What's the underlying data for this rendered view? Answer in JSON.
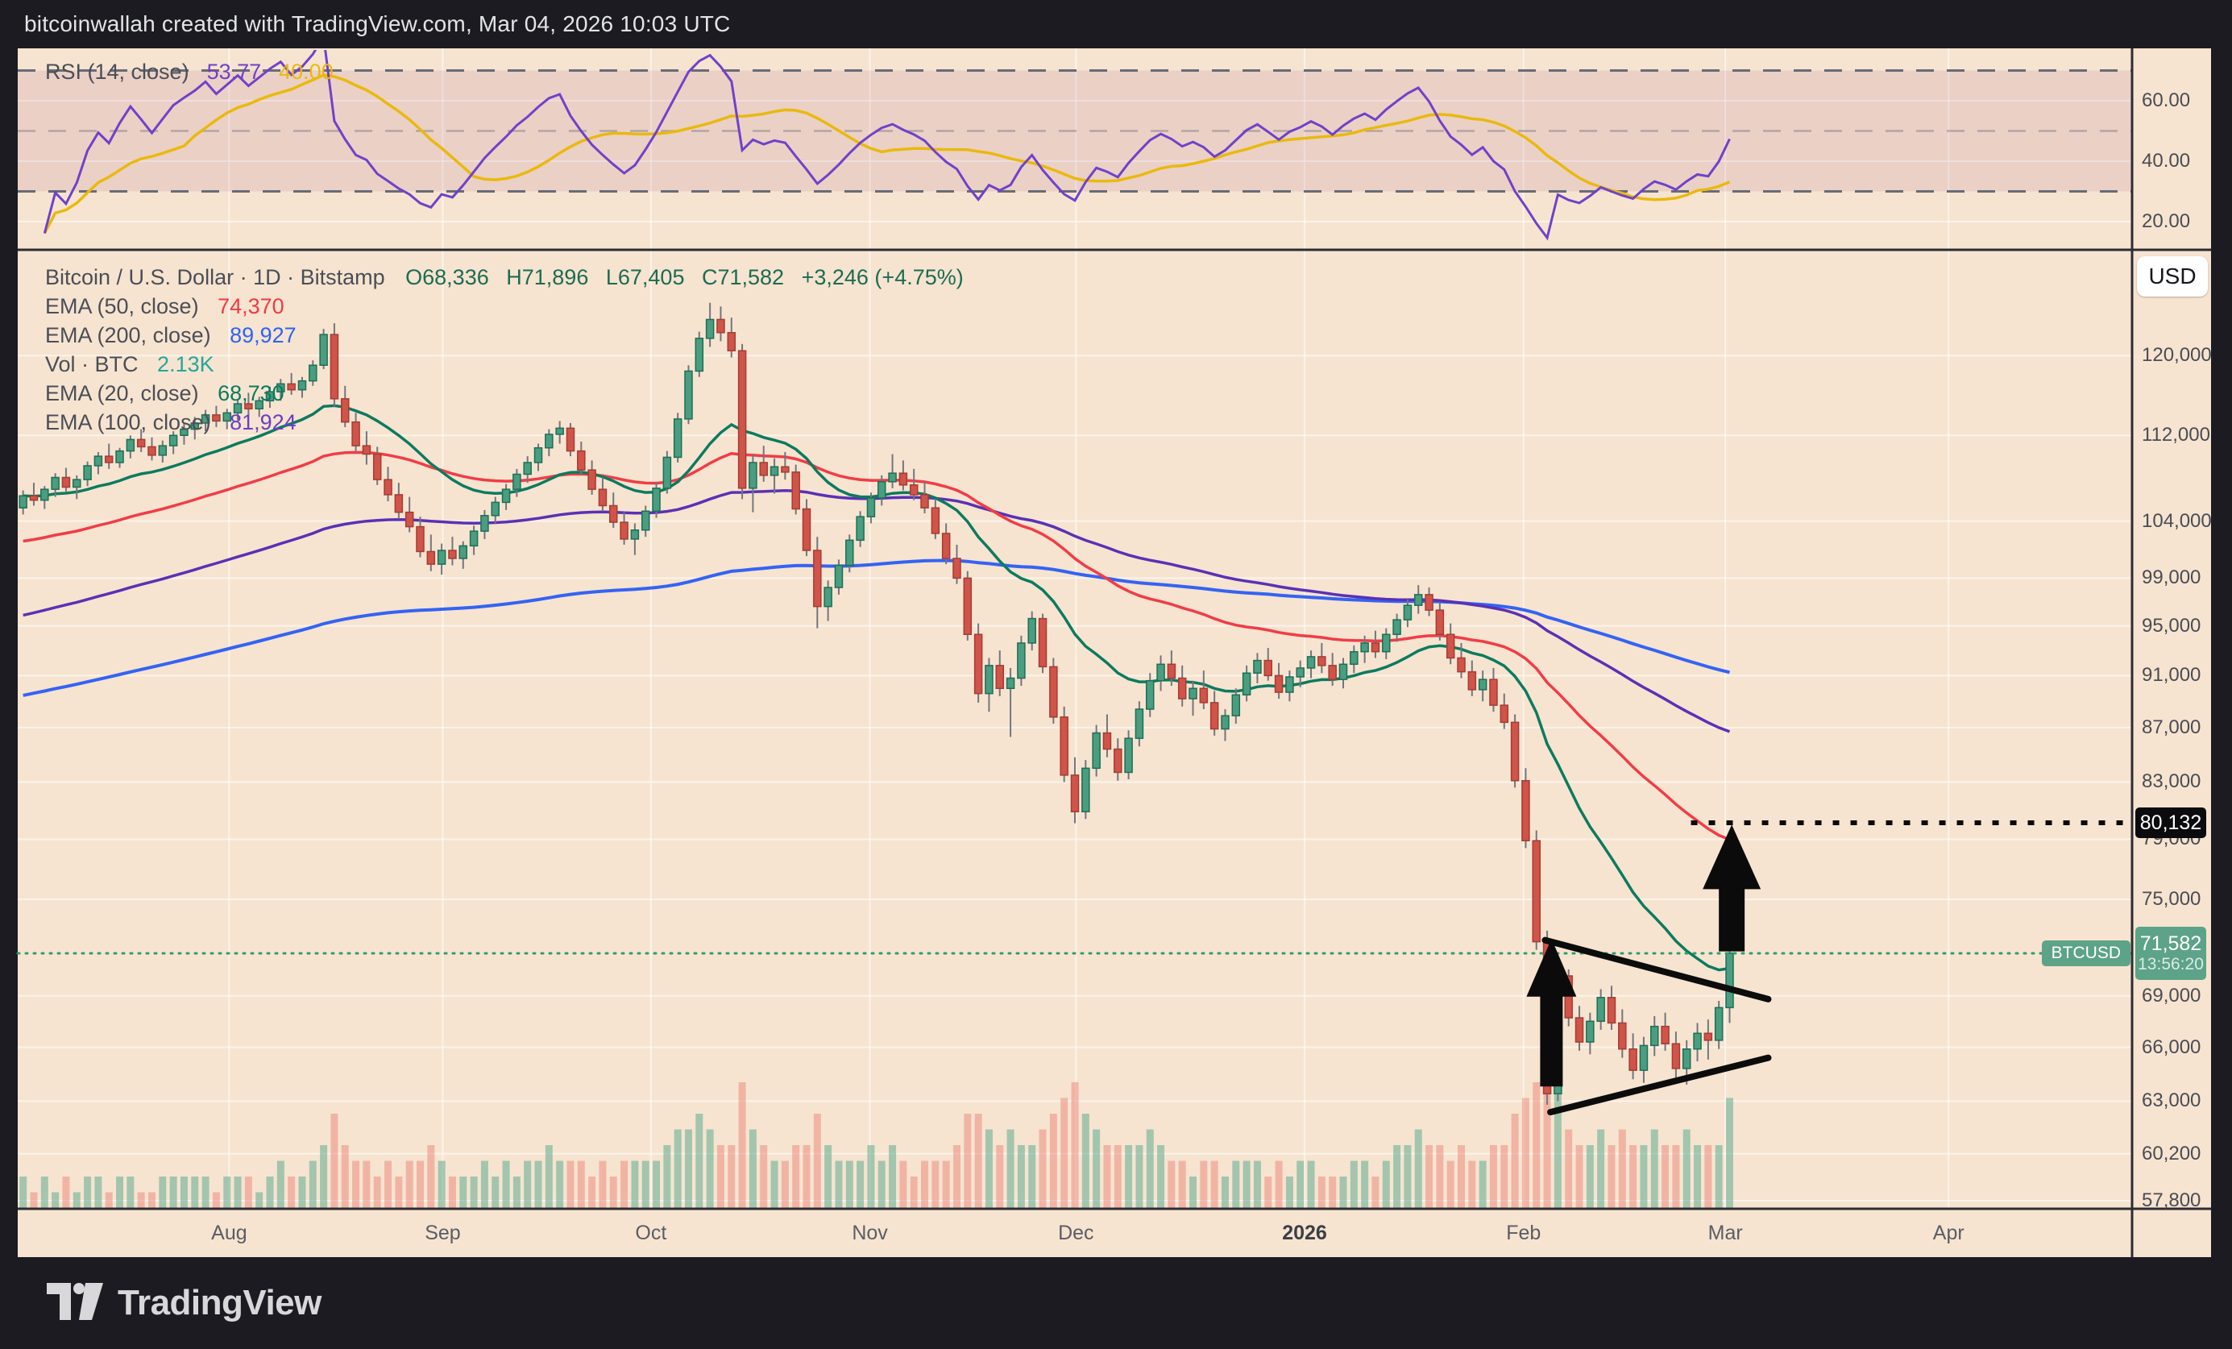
{
  "header": {
    "title": "bitcoinwallah created with TradingView.com, Mar 04, 2026 10:03 UTC"
  },
  "rsi_panel": {
    "legend_label": "RSI (14, close)",
    "rsi_value": "53.77",
    "ma_value": "40.00",
    "colors": {
      "rsi": "#6f42c8",
      "ma": "#e9b90e"
    },
    "ticks": [
      {
        "label": "60.00",
        "value": 60
      },
      {
        "label": "40.00",
        "value": 40
      },
      {
        "label": "20.00",
        "value": 20
      }
    ],
    "bands": {
      "upper": 70,
      "middle": 50,
      "lower": 30
    }
  },
  "main_panel": {
    "legend_title": "Bitcoin / U.S. Dollar · 1D · Bitstamp",
    "ohlc": {
      "open": "O68,336",
      "high": "H71,896",
      "low": "L67,405",
      "close": "C71,582",
      "change": "+3,246 (+4.75%)",
      "color": "#1c6b52"
    },
    "indicators": [
      {
        "label": "EMA (50, close)",
        "value": "74,370",
        "color": "#ef3a45"
      },
      {
        "label": "EMA (200, close)",
        "value": "89,927",
        "color": "#2d63f2"
      },
      {
        "label": "Vol · BTC",
        "value": "2.13K",
        "color": "#26a69a"
      },
      {
        "label": "EMA (20, close)",
        "value": "68,730",
        "color": "#0d7a5f"
      },
      {
        "label": "EMA (100, close)",
        "value": "81,924",
        "color": "#6b3fc4"
      }
    ]
  },
  "price_scale": {
    "currency_button": "USD",
    "ticks": [
      {
        "label": "120,000",
        "value": 120000
      },
      {
        "label": "112,000",
        "value": 112000
      },
      {
        "label": "104,000",
        "value": 104000
      },
      {
        "label": "99,000",
        "value": 99000
      },
      {
        "label": "95,000",
        "value": 95000
      },
      {
        "label": "91,000",
        "value": 91000
      },
      {
        "label": "87,000",
        "value": 87000
      },
      {
        "label": "83,000",
        "value": 83000
      },
      {
        "label": "79,000",
        "value": 79000
      },
      {
        "label": "75,000",
        "value": 75000
      },
      {
        "label": "69,000",
        "value": 69000
      },
      {
        "label": "66,000",
        "value": 66000
      },
      {
        "label": "63,000",
        "value": 63000
      },
      {
        "label": "60,200",
        "value": 60200
      },
      {
        "label": "57,800",
        "value": 57800
      }
    ],
    "target_label": "80,132",
    "symbol_label": "BTCUSD",
    "last_price": "71,582",
    "countdown": "13:56:20"
  },
  "time_axis": {
    "months": [
      {
        "label": "Aug",
        "slot": 19.2
      },
      {
        "label": "Sep",
        "slot": 39.1
      },
      {
        "label": "Oct",
        "slot": 58.5
      },
      {
        "label": "Nov",
        "slot": 78.9
      },
      {
        "label": "Dec",
        "slot": 98.1
      },
      {
        "label": "2026",
        "slot": 119.4,
        "bold": true
      },
      {
        "label": "Feb",
        "slot": 139.8
      },
      {
        "label": "Mar",
        "slot": 158.6
      },
      {
        "label": "Apr",
        "slot": 179.4
      }
    ]
  },
  "footer": {
    "brand": "TradingView"
  },
  "chart_data": {
    "type": "candlestick",
    "title": "Bitcoin / U.S. Dollar",
    "symbol": "BTCUSD",
    "interval": "1D",
    "exchange": "Bitstamp",
    "scale": "log",
    "ylim": [
      57400,
      131300
    ],
    "rsi": {
      "period": 14,
      "ma_period": 14,
      "last": 53.77,
      "ma_last": 40.0
    },
    "ema_overlays": [
      {
        "period": 20,
        "color": "#0d7a5f",
        "width": 3.5,
        "seed_mult": 1.0,
        "last": 68730
      },
      {
        "period": 50,
        "color": "#f13c47",
        "width": 3.5,
        "seed_mult": 0.96,
        "last": 74370
      },
      {
        "period": 100,
        "color": "#5a31b5",
        "width": 3.5,
        "seed_mult": 0.9,
        "last": 81924
      },
      {
        "period": 200,
        "color": "#3563f2",
        "width": 4,
        "seed_mult": 0.84,
        "last": 89927
      }
    ],
    "units": "thousands_usd",
    "candles": [
      [
        105.2,
        106.8,
        104.6,
        106.3,
        2
      ],
      [
        106.3,
        107.5,
        105.4,
        105.9,
        1
      ],
      [
        105.9,
        107.2,
        105.1,
        106.9,
        2
      ],
      [
        106.9,
        108.4,
        106.2,
        108.0,
        1
      ],
      [
        108.0,
        108.9,
        106.6,
        107.1,
        2
      ],
      [
        107.1,
        108.2,
        106.0,
        107.8,
        1
      ],
      [
        107.8,
        109.5,
        107.2,
        109.1,
        2
      ],
      [
        109.1,
        110.4,
        108.3,
        110.0,
        2
      ],
      [
        110.0,
        111.2,
        108.8,
        109.4,
        1
      ],
      [
        109.4,
        110.8,
        108.9,
        110.5,
        2
      ],
      [
        110.5,
        112.0,
        109.8,
        111.6,
        2
      ],
      [
        111.6,
        112.6,
        110.4,
        110.9,
        1
      ],
      [
        110.9,
        111.8,
        109.6,
        110.1,
        1
      ],
      [
        110.1,
        111.5,
        109.4,
        111.0,
        2
      ],
      [
        111.0,
        112.4,
        110.2,
        112.0,
        2
      ],
      [
        112.0,
        113.2,
        111.1,
        112.6,
        2
      ],
      [
        112.6,
        113.8,
        111.6,
        113.2,
        2
      ],
      [
        113.2,
        114.5,
        112.4,
        114.0,
        2
      ],
      [
        114.0,
        114.9,
        112.8,
        113.4,
        1
      ],
      [
        113.4,
        114.6,
        112.6,
        114.2,
        2
      ],
      [
        114.2,
        115.6,
        113.5,
        115.1,
        2
      ],
      [
        115.1,
        116.2,
        114.0,
        114.6,
        2
      ],
      [
        114.6,
        115.8,
        113.8,
        115.4,
        1
      ],
      [
        115.4,
        116.8,
        114.7,
        116.3,
        2
      ],
      [
        116.3,
        117.6,
        115.4,
        117.1,
        3
      ],
      [
        117.1,
        118.2,
        116.0,
        116.5,
        2
      ],
      [
        116.5,
        117.8,
        115.7,
        117.4,
        2
      ],
      [
        117.4,
        119.5,
        116.9,
        119.0,
        3
      ],
      [
        119.0,
        122.8,
        118.6,
        122.2,
        4
      ],
      [
        122.2,
        123.4,
        114.8,
        115.6,
        6
      ],
      [
        115.6,
        116.9,
        112.8,
        113.3,
        4
      ],
      [
        113.3,
        114.2,
        110.5,
        111.0,
        3
      ],
      [
        111.0,
        112.4,
        109.2,
        110.2,
        3
      ],
      [
        110.2,
        110.9,
        107.3,
        107.8,
        2
      ],
      [
        107.8,
        109.0,
        105.8,
        106.4,
        3
      ],
      [
        106.4,
        107.5,
        104.2,
        104.8,
        2
      ],
      [
        104.8,
        106.2,
        103.0,
        103.5,
        3
      ],
      [
        103.5,
        104.4,
        100.8,
        101.3,
        3
      ],
      [
        101.3,
        102.8,
        99.6,
        100.2,
        4
      ],
      [
        100.2,
        102.0,
        99.3,
        101.4,
        3
      ],
      [
        101.4,
        102.6,
        100.1,
        100.7,
        2
      ],
      [
        100.7,
        102.2,
        99.8,
        101.8,
        2
      ],
      [
        101.8,
        103.6,
        101.0,
        103.1,
        2
      ],
      [
        103.1,
        105.0,
        102.4,
        104.5,
        3
      ],
      [
        104.5,
        106.2,
        103.8,
        105.7,
        2
      ],
      [
        105.7,
        107.4,
        105.0,
        106.9,
        3
      ],
      [
        106.9,
        108.8,
        106.2,
        108.3,
        2
      ],
      [
        108.3,
        110.0,
        107.5,
        109.4,
        3
      ],
      [
        109.4,
        111.2,
        108.6,
        110.8,
        3
      ],
      [
        110.8,
        112.6,
        110.0,
        112.1,
        4
      ],
      [
        112.1,
        113.4,
        111.2,
        112.7,
        3
      ],
      [
        112.7,
        113.2,
        110.0,
        110.5,
        3
      ],
      [
        110.5,
        111.4,
        108.2,
        108.7,
        3
      ],
      [
        108.7,
        109.6,
        106.4,
        106.9,
        2
      ],
      [
        106.9,
        108.0,
        104.9,
        105.4,
        3
      ],
      [
        105.4,
        106.6,
        103.4,
        103.9,
        2
      ],
      [
        103.9,
        104.8,
        101.9,
        102.4,
        3
      ],
      [
        102.4,
        103.8,
        101.0,
        103.2,
        3
      ],
      [
        103.2,
        105.4,
        102.6,
        104.9,
        3
      ],
      [
        104.9,
        107.6,
        104.3,
        107.0,
        3
      ],
      [
        107.0,
        110.5,
        106.5,
        109.9,
        4
      ],
      [
        109.9,
        114.2,
        109.4,
        113.6,
        5
      ],
      [
        113.6,
        119.0,
        113.1,
        118.4,
        5
      ],
      [
        118.4,
        122.5,
        117.8,
        121.8,
        6
      ],
      [
        121.8,
        125.6,
        120.9,
        123.8,
        5
      ],
      [
        123.8,
        125.2,
        121.5,
        122.4,
        4
      ],
      [
        122.4,
        124.0,
        119.8,
        120.5,
        4
      ],
      [
        120.5,
        121.2,
        106.0,
        107.0,
        8
      ],
      [
        107.0,
        110.2,
        104.8,
        109.4,
        5
      ],
      [
        109.4,
        111.0,
        107.6,
        108.2,
        4
      ],
      [
        108.2,
        109.8,
        106.5,
        109.0,
        3
      ],
      [
        109.0,
        110.4,
        107.8,
        108.5,
        3
      ],
      [
        108.5,
        109.2,
        104.6,
        105.1,
        4
      ],
      [
        105.1,
        106.0,
        100.9,
        101.4,
        4
      ],
      [
        101.4,
        102.6,
        94.8,
        96.6,
        6
      ],
      [
        96.6,
        98.8,
        95.4,
        98.2,
        4
      ],
      [
        98.2,
        100.6,
        97.6,
        100.1,
        3
      ],
      [
        100.1,
        102.8,
        99.5,
        102.3,
        3
      ],
      [
        102.3,
        104.9,
        101.7,
        104.4,
        3
      ],
      [
        104.4,
        106.6,
        103.8,
        106.1,
        4
      ],
      [
        106.1,
        108.2,
        105.4,
        107.6,
        3
      ],
      [
        107.6,
        110.2,
        107.0,
        108.4,
        4
      ],
      [
        108.4,
        109.6,
        106.8,
        107.3,
        3
      ],
      [
        107.3,
        108.8,
        105.9,
        106.4,
        2
      ],
      [
        106.4,
        107.6,
        104.7,
        105.2,
        3
      ],
      [
        105.2,
        106.0,
        102.4,
        102.9,
        3
      ],
      [
        102.9,
        103.8,
        100.2,
        100.7,
        3
      ],
      [
        100.7,
        101.9,
        98.5,
        99.0,
        4
      ],
      [
        99.0,
        99.6,
        93.8,
        94.3,
        6
      ],
      [
        94.3,
        95.2,
        88.9,
        89.6,
        6
      ],
      [
        89.6,
        92.4,
        88.2,
        91.8,
        5
      ],
      [
        91.8,
        93.0,
        89.4,
        90.0,
        4
      ],
      [
        90.0,
        91.6,
        86.3,
        90.8,
        5
      ],
      [
        90.8,
        94.2,
        90.2,
        93.6,
        4
      ],
      [
        93.6,
        96.2,
        93.0,
        95.6,
        4
      ],
      [
        95.6,
        96.0,
        91.2,
        91.7,
        5
      ],
      [
        91.7,
        92.4,
        87.3,
        87.8,
        6
      ],
      [
        87.8,
        88.6,
        83.0,
        83.5,
        7
      ],
      [
        83.5,
        84.8,
        80.1,
        80.9,
        8
      ],
      [
        80.9,
        84.6,
        80.4,
        84.0,
        6
      ],
      [
        84.0,
        87.2,
        83.4,
        86.6,
        5
      ],
      [
        86.6,
        88.0,
        84.8,
        85.4,
        4
      ],
      [
        85.4,
        86.2,
        83.1,
        83.7,
        4
      ],
      [
        83.7,
        86.8,
        83.2,
        86.2,
        4
      ],
      [
        86.2,
        89.0,
        85.6,
        88.4,
        4
      ],
      [
        88.4,
        91.2,
        87.8,
        90.6,
        5
      ],
      [
        90.6,
        92.6,
        89.8,
        91.9,
        4
      ],
      [
        91.9,
        93.0,
        90.2,
        90.8,
        3
      ],
      [
        90.8,
        91.8,
        88.6,
        89.2,
        3
      ],
      [
        89.2,
        90.6,
        87.9,
        90.0,
        2
      ],
      [
        90.0,
        91.4,
        88.4,
        88.9,
        3
      ],
      [
        88.9,
        89.8,
        86.4,
        86.9,
        3
      ],
      [
        86.9,
        88.4,
        86.0,
        87.9,
        2
      ],
      [
        87.9,
        90.0,
        87.3,
        89.5,
        3
      ],
      [
        89.5,
        91.8,
        89.0,
        91.2,
        3
      ],
      [
        91.2,
        92.8,
        90.4,
        92.2,
        3
      ],
      [
        92.2,
        93.2,
        90.6,
        91.0,
        2
      ],
      [
        91.0,
        92.0,
        89.2,
        89.7,
        3
      ],
      [
        89.7,
        91.4,
        89.0,
        90.9,
        2
      ],
      [
        90.9,
        92.2,
        90.1,
        91.6,
        3
      ],
      [
        91.6,
        93.0,
        90.8,
        92.5,
        3
      ],
      [
        92.5,
        93.6,
        91.2,
        91.8,
        2
      ],
      [
        91.8,
        92.8,
        90.2,
        90.7,
        2
      ],
      [
        90.7,
        92.4,
        90.0,
        91.9,
        2
      ],
      [
        91.9,
        93.4,
        91.2,
        92.9,
        3
      ],
      [
        92.9,
        94.2,
        92.0,
        93.6,
        3
      ],
      [
        93.6,
        94.6,
        92.4,
        92.9,
        2
      ],
      [
        92.9,
        94.8,
        92.3,
        94.3,
        3
      ],
      [
        94.3,
        96.0,
        93.7,
        95.5,
        4
      ],
      [
        95.5,
        97.2,
        94.9,
        96.7,
        4
      ],
      [
        96.7,
        98.4,
        96.0,
        97.6,
        5
      ],
      [
        97.6,
        98.2,
        95.8,
        96.3,
        4
      ],
      [
        96.3,
        97.0,
        93.8,
        94.3,
        4
      ],
      [
        94.3,
        95.2,
        91.9,
        92.4,
        3
      ],
      [
        92.4,
        93.6,
        90.8,
        91.3,
        4
      ],
      [
        91.3,
        92.2,
        89.4,
        89.9,
        3
      ],
      [
        89.9,
        91.4,
        89.0,
        90.7,
        3
      ],
      [
        90.7,
        91.6,
        88.2,
        88.7,
        4
      ],
      [
        88.7,
        89.6,
        86.9,
        87.4,
        4
      ],
      [
        87.4,
        88.0,
        82.6,
        83.1,
        6
      ],
      [
        83.1,
        84.0,
        78.4,
        78.9,
        7
      ],
      [
        78.9,
        79.6,
        71.8,
        72.3,
        8
      ],
      [
        72.3,
        73.0,
        62.8,
        63.4,
        10
      ],
      [
        63.4,
        70.8,
        63.0,
        70.2,
        8
      ],
      [
        70.2,
        70.6,
        67.2,
        67.7,
        5
      ],
      [
        67.7,
        68.4,
        65.8,
        66.3,
        4
      ],
      [
        66.3,
        68.0,
        65.6,
        67.5,
        4
      ],
      [
        67.5,
        69.4,
        67.0,
        68.9,
        5
      ],
      [
        68.9,
        69.6,
        67.0,
        67.4,
        4
      ],
      [
        67.4,
        68.2,
        65.4,
        65.9,
        5
      ],
      [
        65.9,
        66.8,
        64.2,
        64.7,
        4
      ],
      [
        64.7,
        66.6,
        64.0,
        66.1,
        4
      ],
      [
        66.1,
        67.8,
        65.5,
        67.2,
        5
      ],
      [
        67.2,
        68.0,
        65.8,
        66.2,
        4
      ],
      [
        66.2,
        66.9,
        64.3,
        64.8,
        4
      ],
      [
        64.8,
        66.4,
        63.9,
        65.9,
        5
      ],
      [
        65.9,
        67.4,
        65.2,
        66.8,
        4
      ],
      [
        66.8,
        67.6,
        65.3,
        66.4,
        4
      ],
      [
        66.4,
        68.7,
        65.9,
        68.3,
        4
      ],
      [
        68.3,
        71.9,
        67.4,
        71.6,
        7
      ]
    ],
    "drawings": {
      "trendlines": [
        {
          "from_slot": 141.8,
          "from_price": 72400,
          "to_slot": 162.6,
          "to_price": 68800
        },
        {
          "from_slot": 142.3,
          "from_price": 62400,
          "to_slot": 162.6,
          "to_price": 65400
        }
      ],
      "target_line": {
        "price": 80132,
        "from_slot": 155.4
      },
      "price_line": {
        "price": 71582,
        "color": "#2f9c6d"
      },
      "arrows": [
        {
          "slot": 159.2,
          "tip_price": 80000,
          "base_price": 71700,
          "size": "large"
        },
        {
          "slot": 142.4,
          "tip_price": 72500,
          "base_price": 63800,
          "size": "small"
        }
      ]
    }
  }
}
